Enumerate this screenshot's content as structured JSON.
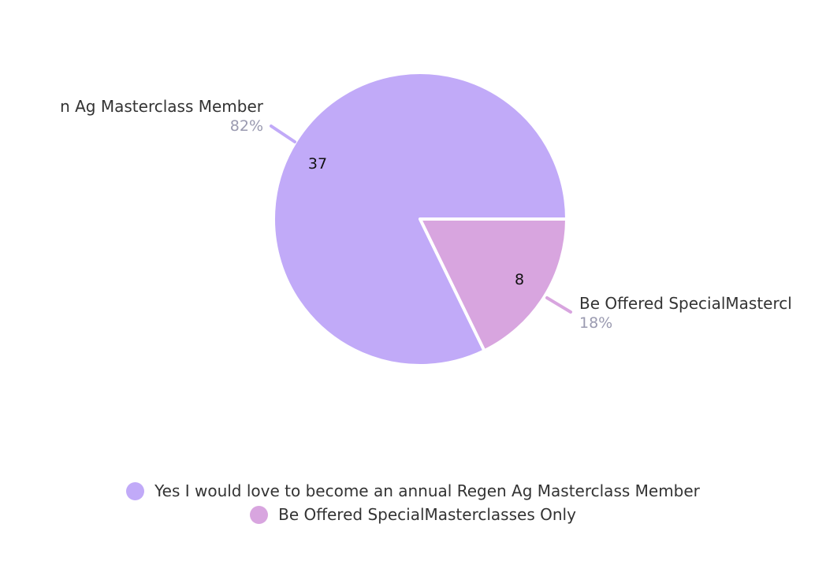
{
  "chart_data": {
    "type": "pie",
    "slices": [
      {
        "name": "Yes I would love to become an annual Regen Ag Masterclass Member",
        "value": 37,
        "percent_label": "82%",
        "outer_label": "n Ag Masterclass Member",
        "color": "#c1aaf8"
      },
      {
        "name": "Be Offered SpecialMasterclasses Only",
        "value": 8,
        "percent_label": "18%",
        "outer_label": "Be Offered SpecialMastercl",
        "color": "#d8a5df"
      }
    ],
    "legend_position": "bottom-center"
  }
}
